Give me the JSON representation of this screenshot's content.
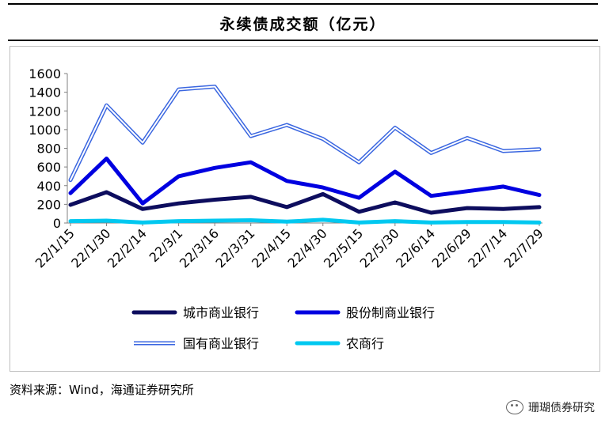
{
  "title": "永续债成交额（亿元）",
  "source": "资料来源：Wind，海通证券研究所",
  "watermark": "珊瑚债券研究",
  "chart_data": {
    "type": "line",
    "title": "永续债成交额（亿元）",
    "xlabel": "",
    "ylabel": "",
    "ylim": [
      0,
      1600
    ],
    "yticks": [
      0,
      200,
      400,
      600,
      800,
      1000,
      1200,
      1400,
      1600
    ],
    "grid": false,
    "legend_position": "bottom",
    "x": [
      "22/1/15",
      "22/1/30",
      "22/2/14",
      "22/3/1",
      "22/3/16",
      "22/3/31",
      "22/4/15",
      "22/4/30",
      "22/5/15",
      "22/5/30",
      "22/6/14",
      "22/6/29",
      "22/7/14",
      "22/7/29"
    ],
    "series": [
      {
        "name": "城市商业银行",
        "color": "#0d0d5e",
        "style": "solid",
        "values": [
          195,
          330,
          150,
          210,
          250,
          280,
          170,
          310,
          120,
          220,
          110,
          160,
          150,
          170
        ]
      },
      {
        "name": "股份制商业银行",
        "color": "#0000e0",
        "style": "solid",
        "values": [
          320,
          690,
          210,
          500,
          590,
          650,
          450,
          380,
          270,
          550,
          290,
          340,
          390,
          300
        ]
      },
      {
        "name": "国有商业银行",
        "color": "#3a66e0",
        "style": "double",
        "values": [
          460,
          1260,
          860,
          1430,
          1460,
          930,
          1050,
          900,
          650,
          1020,
          750,
          910,
          770,
          790
        ]
      },
      {
        "name": "农商行",
        "color": "#00c8f0",
        "style": "solid",
        "values": [
          20,
          25,
          5,
          20,
          25,
          30,
          15,
          35,
          5,
          20,
          5,
          10,
          10,
          5
        ]
      }
    ]
  }
}
